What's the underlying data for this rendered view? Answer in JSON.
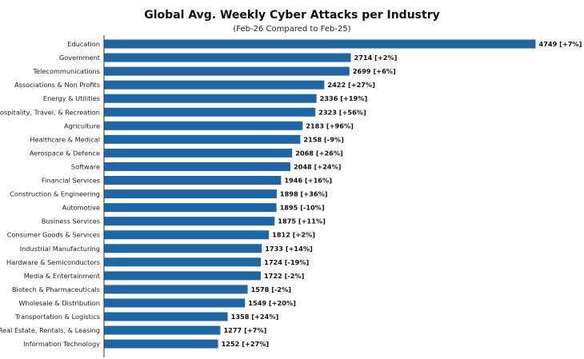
{
  "chart_data": {
    "type": "bar",
    "orientation": "horizontal",
    "title": "Global Avg. Weekly Cyber Attacks per Industry",
    "subtitle": "(Feb-26 Compared to Feb-25)",
    "xlabel": "",
    "ylabel": "",
    "grid": false,
    "bar_color": "#1f66a6",
    "categories": [
      "Education",
      "Government",
      "Telecommunications",
      "Associations & Non Profits",
      "Energy & Utilities",
      "Hospitality, Travel, & Recreation",
      "Agriculture",
      "Healthcare & Medical",
      "Aerospace & Defence",
      "Software",
      "Financial Services",
      "Construction & Engineering",
      "Automotive",
      "Business Services",
      "Consumer Goods & Services",
      "Industrial Manufacturing",
      "Hardware & Semiconductors",
      "Media & Entertainment",
      "Biotech & Pharmaceuticals",
      "Wholesale & Distribution",
      "Transportation & Logistics",
      "Real Estate, Rentals, & Leasing",
      "Information Technology"
    ],
    "values": [
      4749,
      2714,
      2699,
      2422,
      2336,
      2323,
      2183,
      2158,
      2068,
      2048,
      1946,
      1898,
      1895,
      1875,
      1812,
      1733,
      1724,
      1722,
      1578,
      1549,
      1358,
      1277,
      1252
    ],
    "data_labels": [
      "4749 [+7%]",
      "2714 [+2%]",
      "2699 [+6%]",
      "2422 [+27%]",
      "2336 [+19%]",
      "2323 [+56%]",
      "2183 [+96%]",
      "2158 [-9%]",
      "2068 [+26%]",
      "2048 [+24%]",
      "1946 [+16%]",
      "1898 [+36%]",
      "1895 [-10%]",
      "1875 [+11%]",
      "1812 [+2%]",
      "1733 [+14%]",
      "1724 [-19%]",
      "1722 [-2%]",
      "1578 [-2%]",
      "1549 [+20%]",
      "1358 [+24%]",
      "1277 [+7%]",
      "1252 [+27%]"
    ]
  }
}
